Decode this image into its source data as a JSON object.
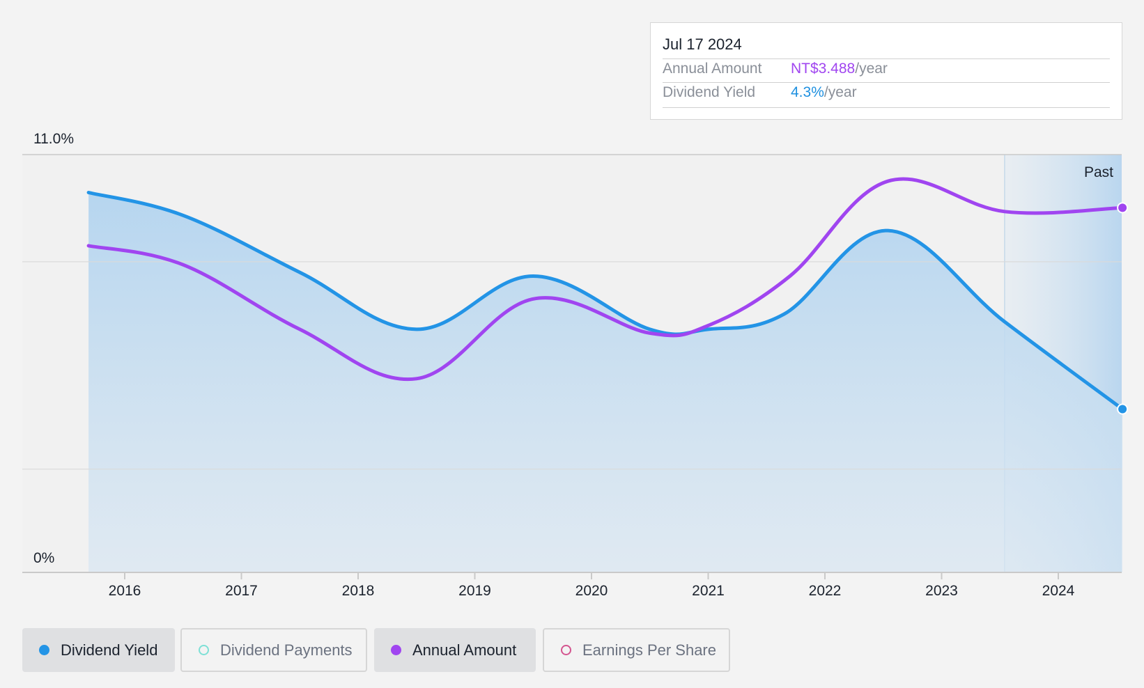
{
  "tooltip": {
    "date": "Jul 17 2024",
    "rows": [
      {
        "label": "Annual Amount",
        "value": "NT$3.488",
        "unit": "/year",
        "color": "#a045f0"
      },
      {
        "label": "Dividend Yield",
        "value": "4.3%",
        "unit": "/year",
        "color": "#1e90e0"
      }
    ]
  },
  "legend": [
    {
      "label": "Dividend Yield",
      "active": true,
      "dot_color": "#2394e6",
      "dot_style": "filled"
    },
    {
      "label": "Dividend Payments",
      "active": false,
      "dot_color": "#7ee0d6",
      "dot_style": "hollow"
    },
    {
      "label": "Annual Amount",
      "active": true,
      "dot_color": "#a045f0",
      "dot_style": "filled"
    },
    {
      "label": "Earnings Per Share",
      "active": false,
      "dot_color": "#d4558f",
      "dot_style": "hollow"
    }
  ],
  "chart_data": {
    "type": "line",
    "y_axis": {
      "min": 0,
      "max": 11.0,
      "labels": [
        {
          "value": 11.0,
          "text": "11.0%"
        },
        {
          "value": 0,
          "text": "0%"
        }
      ]
    },
    "x_axis": {
      "min": 2015.3,
      "max": 2024.55,
      "ticks": [
        "2016",
        "2017",
        "2018",
        "2019",
        "2020",
        "2021",
        "2022",
        "2023",
        "2024"
      ]
    },
    "past_region": {
      "start": 2023.54,
      "label": "Past"
    },
    "colors": {
      "yield": "#2394e6",
      "amount": "#a045f0",
      "area": "#b9d7ef",
      "plot_bg": "#f1f1f1",
      "axis": "#c9c9c9"
    },
    "series": [
      {
        "name": "Dividend Yield",
        "key": "yield",
        "points": [
          [
            2015.69,
            10.0
          ],
          [
            2016.5,
            9.4
          ],
          [
            2017.5,
            7.9
          ],
          [
            2018.5,
            6.4
          ],
          [
            2019.5,
            7.8
          ],
          [
            2020.5,
            6.4
          ],
          [
            2021.0,
            6.4
          ],
          [
            2021.65,
            6.8
          ],
          [
            2022.54,
            9.0
          ],
          [
            2023.54,
            6.6
          ],
          [
            2024.55,
            4.3
          ]
        ]
      },
      {
        "name": "Annual Amount",
        "key": "amount",
        "points": [
          [
            2015.69,
            8.6
          ],
          [
            2016.5,
            8.1
          ],
          [
            2017.5,
            6.4
          ],
          [
            2018.5,
            5.1
          ],
          [
            2019.5,
            7.2
          ],
          [
            2020.5,
            6.3
          ],
          [
            2021.0,
            6.5
          ],
          [
            2021.7,
            7.8
          ],
          [
            2022.54,
            10.3
          ],
          [
            2023.54,
            9.5
          ],
          [
            2024.55,
            9.6
          ]
        ]
      }
    ]
  }
}
